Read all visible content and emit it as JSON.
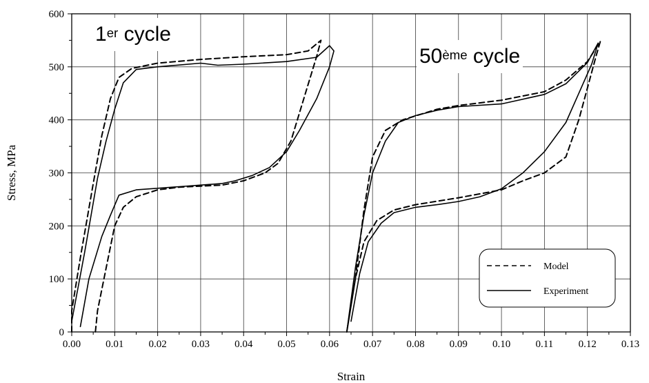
{
  "chart_data": {
    "type": "line",
    "xlabel": "Strain",
    "ylabel": "Stress, MPa",
    "xlim": [
      0,
      0.13
    ],
    "ylim": [
      0,
      600
    ],
    "x_ticks": [
      "0.00",
      "0.01",
      "0.02",
      "0.03",
      "0.04",
      "0.05",
      "0.06",
      "0.07",
      "0.08",
      "0.09",
      "0.10",
      "0.11",
      "0.12",
      "0.13"
    ],
    "y_ticks": [
      "0",
      "100",
      "200",
      "300",
      "400",
      "500",
      "600"
    ],
    "grid": true,
    "legend_position": "bottom-right",
    "legend": [
      {
        "label": "Model",
        "style": "dashed"
      },
      {
        "label": "Experiment",
        "style": "solid"
      }
    ],
    "annotations": [
      {
        "base": "1",
        "sup": "er",
        "text": " cycle"
      },
      {
        "base": "50",
        "sup": "ème",
        "text": " cycle"
      }
    ],
    "series": [
      {
        "name": "Model",
        "cycle": 1,
        "style": "dashed",
        "points": [
          [
            0.0,
            0
          ],
          [
            0.0,
            40
          ],
          [
            0.002,
            140
          ],
          [
            0.005,
            280
          ],
          [
            0.007,
            370
          ],
          [
            0.009,
            440
          ],
          [
            0.011,
            480
          ],
          [
            0.014,
            497
          ],
          [
            0.02,
            507
          ],
          [
            0.03,
            514
          ],
          [
            0.04,
            519
          ],
          [
            0.05,
            523
          ],
          [
            0.055,
            530
          ],
          [
            0.058,
            550
          ],
          [
            0.057,
            520
          ],
          [
            0.054,
            440
          ],
          [
            0.051,
            360
          ],
          [
            0.048,
            318
          ],
          [
            0.045,
            300
          ],
          [
            0.04,
            285
          ],
          [
            0.035,
            277
          ],
          [
            0.03,
            275
          ],
          [
            0.025,
            273
          ],
          [
            0.02,
            268
          ],
          [
            0.015,
            255
          ],
          [
            0.012,
            235
          ],
          [
            0.01,
            200
          ],
          [
            0.008,
            120
          ],
          [
            0.006,
            40
          ],
          [
            0.0055,
            0
          ]
        ]
      },
      {
        "name": "Experiment",
        "cycle": 1,
        "style": "solid",
        "points": [
          [
            0.0,
            20
          ],
          [
            0.003,
            150
          ],
          [
            0.006,
            290
          ],
          [
            0.008,
            360
          ],
          [
            0.01,
            420
          ],
          [
            0.012,
            470
          ],
          [
            0.015,
            495
          ],
          [
            0.02,
            500
          ],
          [
            0.03,
            507
          ],
          [
            0.034,
            503
          ],
          [
            0.04,
            505
          ],
          [
            0.05,
            510
          ],
          [
            0.057,
            518
          ],
          [
            0.06,
            540
          ],
          [
            0.061,
            530
          ],
          [
            0.06,
            500
          ],
          [
            0.057,
            440
          ],
          [
            0.053,
            380
          ],
          [
            0.05,
            340
          ],
          [
            0.046,
            310
          ],
          [
            0.042,
            295
          ],
          [
            0.038,
            285
          ],
          [
            0.035,
            280
          ],
          [
            0.03,
            277
          ],
          [
            0.025,
            274
          ],
          [
            0.02,
            271
          ],
          [
            0.015,
            268
          ],
          [
            0.011,
            258
          ],
          [
            0.009,
            220
          ],
          [
            0.007,
            180
          ],
          [
            0.004,
            100
          ],
          [
            0.002,
            10
          ]
        ]
      },
      {
        "name": "Model",
        "cycle": 50,
        "style": "dashed",
        "points": [
          [
            0.064,
            0
          ],
          [
            0.066,
            100
          ],
          [
            0.068,
            230
          ],
          [
            0.07,
            330
          ],
          [
            0.073,
            380
          ],
          [
            0.077,
            400
          ],
          [
            0.085,
            420
          ],
          [
            0.09,
            427
          ],
          [
            0.1,
            437
          ],
          [
            0.11,
            453
          ],
          [
            0.115,
            475
          ],
          [
            0.12,
            510
          ],
          [
            0.123,
            548
          ],
          [
            0.122,
            520
          ],
          [
            0.12,
            460
          ],
          [
            0.118,
            400
          ],
          [
            0.115,
            330
          ],
          [
            0.11,
            300
          ],
          [
            0.105,
            285
          ],
          [
            0.1,
            268
          ],
          [
            0.09,
            253
          ],
          [
            0.08,
            240
          ],
          [
            0.075,
            230
          ],
          [
            0.071,
            210
          ],
          [
            0.068,
            170
          ],
          [
            0.066,
            100
          ],
          [
            0.064,
            0
          ]
        ]
      },
      {
        "name": "Experiment",
        "cycle": 50,
        "style": "solid",
        "points": [
          [
            0.064,
            0
          ],
          [
            0.066,
            120
          ],
          [
            0.068,
            220
          ],
          [
            0.07,
            300
          ],
          [
            0.073,
            360
          ],
          [
            0.076,
            395
          ],
          [
            0.08,
            408
          ],
          [
            0.085,
            418
          ],
          [
            0.09,
            425
          ],
          [
            0.1,
            430
          ],
          [
            0.11,
            448
          ],
          [
            0.115,
            468
          ],
          [
            0.12,
            508
          ],
          [
            0.1225,
            545
          ],
          [
            0.121,
            505
          ],
          [
            0.118,
            450
          ],
          [
            0.115,
            395
          ],
          [
            0.11,
            340
          ],
          [
            0.105,
            300
          ],
          [
            0.1,
            270
          ],
          [
            0.095,
            255
          ],
          [
            0.09,
            246
          ],
          [
            0.085,
            240
          ],
          [
            0.08,
            235
          ],
          [
            0.075,
            225
          ],
          [
            0.072,
            205
          ],
          [
            0.069,
            170
          ],
          [
            0.067,
            110
          ],
          [
            0.065,
            20
          ]
        ]
      }
    ]
  }
}
